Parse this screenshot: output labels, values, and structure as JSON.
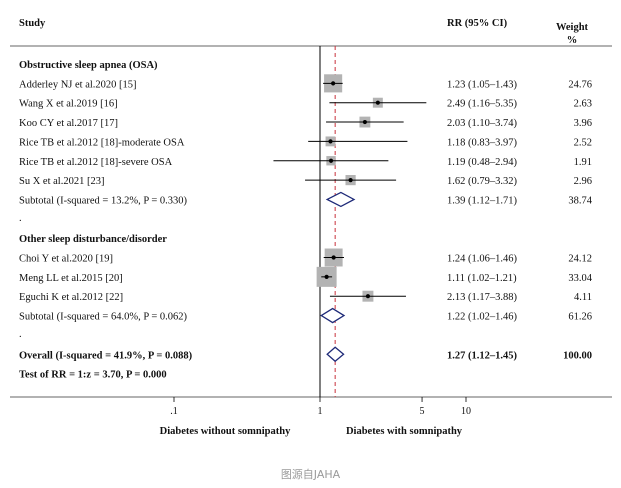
{
  "chart_data": {
    "type": "forest",
    "headers": {
      "study": "Study",
      "rr": "RR (95% CI)",
      "weight_line1": "Weight",
      "weight_line2": "%"
    },
    "x_scale": "log",
    "xlim": [
      0.1,
      12
    ],
    "x_ticks": [
      0.1,
      1,
      5,
      10
    ],
    "x_tick_labels": [
      ".1",
      "1",
      "5",
      "10"
    ],
    "null_line": 1,
    "overall_line": 1.27,
    "axis_annotations": {
      "left": "Diabetes without somnipathy",
      "right": "Diabetes with somnipathy"
    },
    "rows": [
      {
        "kind": "group",
        "label": "Obstructive sleep apnea (OSA)"
      },
      {
        "kind": "study",
        "label": "Adderley NJ et al.2020 [15]",
        "rr": 1.23,
        "lo": 1.05,
        "hi": 1.43,
        "rr_text": "1.23 (1.05–1.43)",
        "weight": 24.76,
        "weight_text": "24.76"
      },
      {
        "kind": "study",
        "label": "Wang X et al.2019 [16]",
        "rr": 2.49,
        "lo": 1.16,
        "hi": 5.35,
        "rr_text": "2.49 (1.16–5.35)",
        "weight": 2.63,
        "weight_text": "2.63"
      },
      {
        "kind": "study",
        "label": "Koo CY et al.2017 [17]",
        "rr": 2.03,
        "lo": 1.1,
        "hi": 3.74,
        "rr_text": "2.03 (1.10–3.74)",
        "weight": 3.96,
        "weight_text": "3.96"
      },
      {
        "kind": "study",
        "label": "Rice TB et al.2012 [18]-moderate OSA",
        "rr": 1.18,
        "lo": 0.83,
        "hi": 3.97,
        "rr_text": "1.18 (0.83–3.97)",
        "weight": 2.52,
        "weight_text": "2.52"
      },
      {
        "kind": "study",
        "label": "Rice TB et al.2012 [18]-severe OSA",
        "rr": 1.19,
        "lo": 0.48,
        "hi": 2.94,
        "rr_text": "1.19 (0.48–2.94)",
        "weight": 1.91,
        "weight_text": "1.91"
      },
      {
        "kind": "study",
        "label": "Su X et al.2021 [23]",
        "rr": 1.62,
        "lo": 0.79,
        "hi": 3.32,
        "rr_text": "1.62 (0.79–3.32)",
        "weight": 2.96,
        "weight_text": "2.96"
      },
      {
        "kind": "subtotal",
        "label": "Subtotal  (I-squared = 13.2%, P = 0.330)",
        "rr": 1.39,
        "lo": 1.12,
        "hi": 1.71,
        "rr_text": "1.39 (1.12–1.71)",
        "weight_text": "38.74"
      },
      {
        "kind": "spacer",
        "label": "."
      },
      {
        "kind": "group",
        "label": "Other sleep disturbance/disorder"
      },
      {
        "kind": "study",
        "label": "Choi Y et al.2020 [19]",
        "rr": 1.24,
        "lo": 1.06,
        "hi": 1.46,
        "rr_text": "1.24 (1.06–1.46)",
        "weight": 24.12,
        "weight_text": "24.12"
      },
      {
        "kind": "study",
        "label": "Meng LL et al.2015 [20]",
        "rr": 1.11,
        "lo": 1.02,
        "hi": 1.21,
        "rr_text": "1.11 (1.02–1.21)",
        "weight": 33.04,
        "weight_text": "33.04"
      },
      {
        "kind": "study",
        "label": "Eguchi K et al.2012 [22]",
        "rr": 2.13,
        "lo": 1.17,
        "hi": 3.88,
        "rr_text": "2.13 (1.17–3.88)",
        "weight": 4.11,
        "weight_text": "4.11"
      },
      {
        "kind": "subtotal",
        "label": "Subtotal  (I-squared = 64.0%, P = 0.062)",
        "rr": 1.22,
        "lo": 1.02,
        "hi": 1.46,
        "rr_text": "1.22 (1.02–1.46)",
        "weight_text": "61.26"
      },
      {
        "kind": "spacer",
        "label": "."
      },
      {
        "kind": "overall",
        "label": "Overall  (I-squared = 41.9%, P = 0.088)",
        "rr": 1.27,
        "lo": 1.12,
        "hi": 1.45,
        "rr_text": "1.27 (1.12–1.45)",
        "weight_text": "100.00"
      },
      {
        "kind": "test",
        "label": "Test of RR = 1:z = 3.70, P = 0.000"
      }
    ]
  },
  "credit": "图源自JAHA"
}
